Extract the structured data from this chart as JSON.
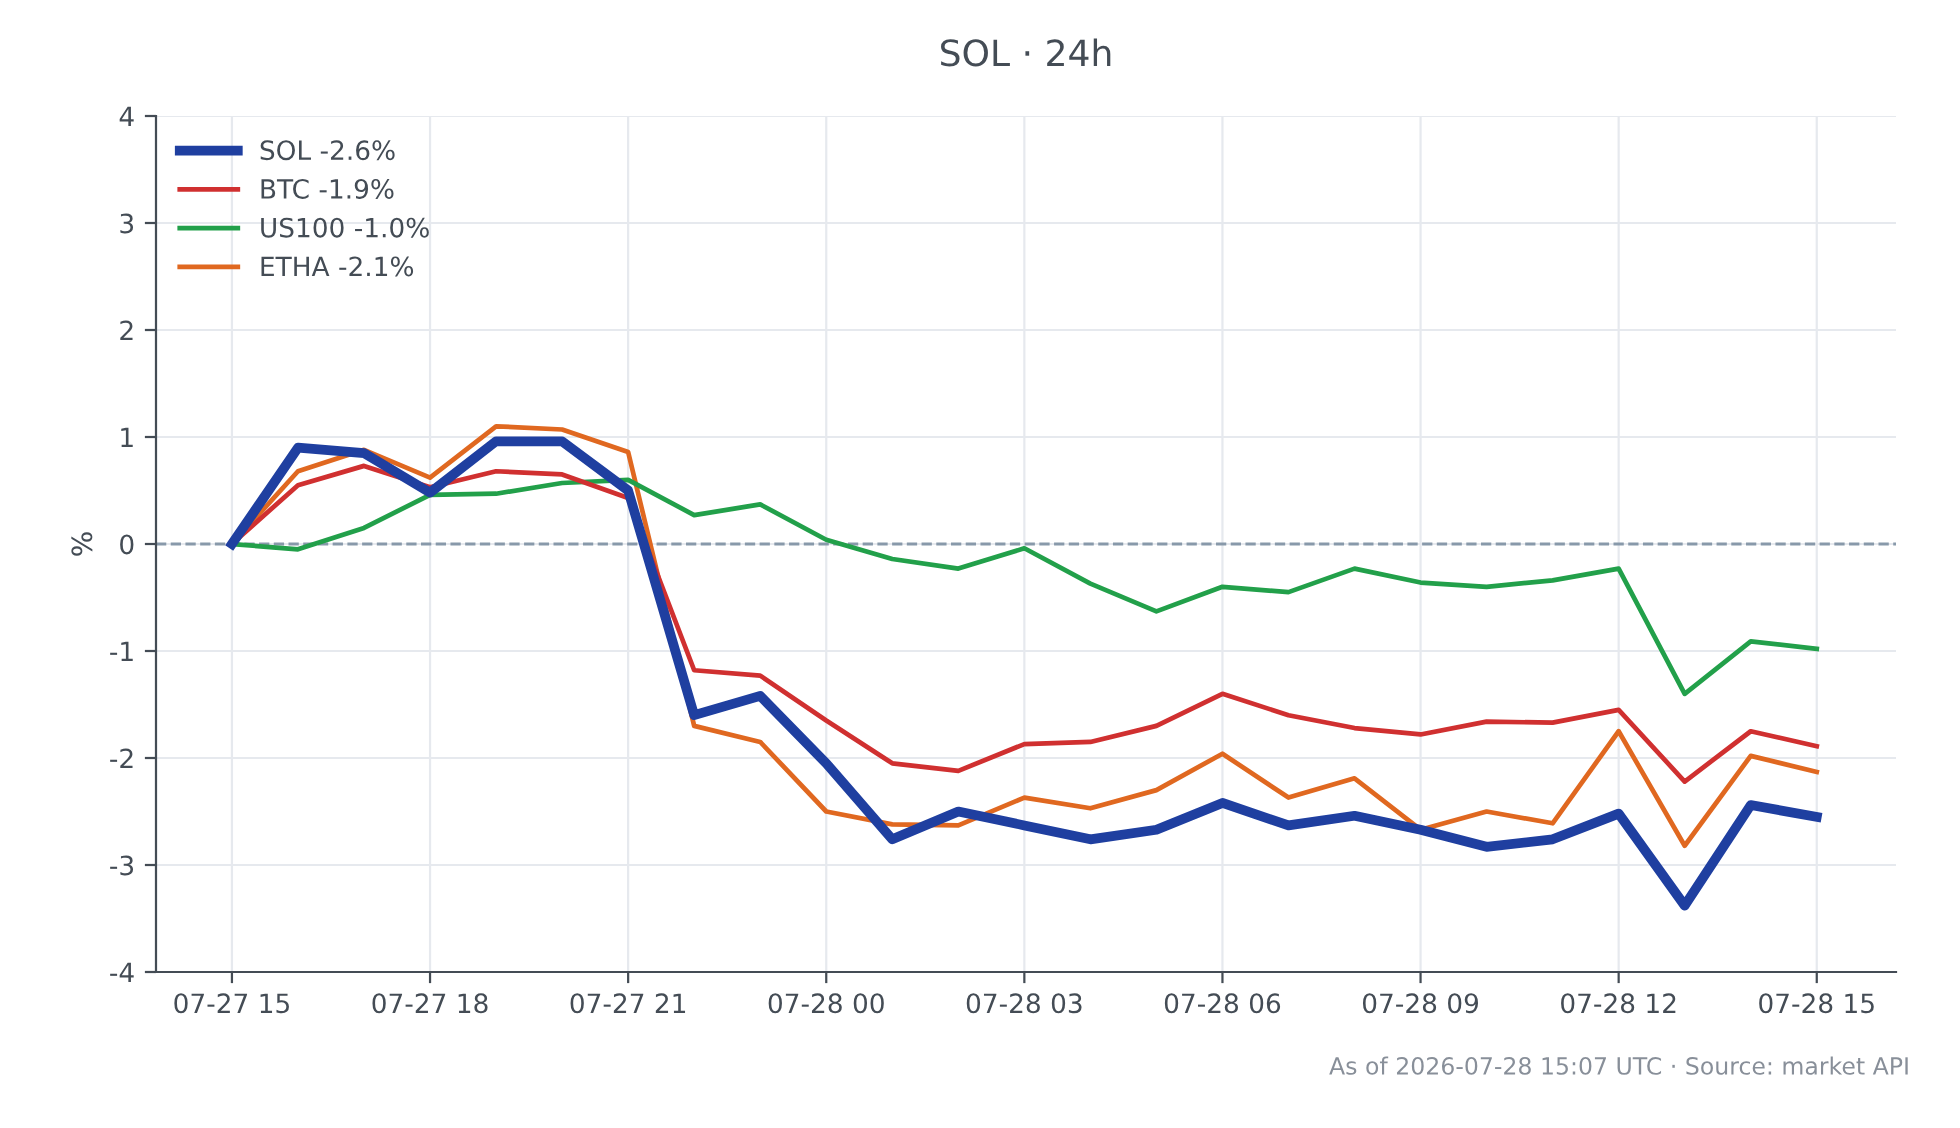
{
  "chart_data": {
    "type": "line",
    "title": "SOL · 24h",
    "ylabel": "%",
    "x": [
      "2026-07-27T15:00",
      "2026-07-27T16:00",
      "2026-07-27T17:00",
      "2026-07-27T18:00",
      "2026-07-27T19:00",
      "2026-07-27T20:00",
      "2026-07-27T21:00",
      "2026-07-27T22:00",
      "2026-07-27T23:00",
      "2026-07-28T00:00",
      "2026-07-28T01:00",
      "2026-07-28T02:00",
      "2026-07-28T03:00",
      "2026-07-28T04:00",
      "2026-07-28T05:00",
      "2026-07-28T06:00",
      "2026-07-28T07:00",
      "2026-07-28T08:00",
      "2026-07-28T09:00",
      "2026-07-28T10:00",
      "2026-07-28T11:00",
      "2026-07-28T12:00",
      "2026-07-28T13:00",
      "2026-07-28T14:00",
      "2026-07-28T15:00"
    ],
    "series": [
      {
        "name": "SOL -2.6%",
        "color": "#1f3fa0",
        "values": [
          0,
          0.9,
          0.85,
          0.48,
          0.96,
          0.96,
          0.5,
          -1.6,
          -1.42,
          -2.05,
          -2.76,
          -2.5,
          -2.63,
          -2.76,
          -2.67,
          -2.42,
          -2.63,
          -2.54,
          -2.67,
          -2.83,
          -2.76,
          -2.52,
          -3.38,
          -2.44,
          -2.55
        ]
      },
      {
        "name": "BTC -1.9%",
        "color": "#d03030",
        "values": [
          0,
          0.55,
          0.73,
          0.53,
          0.68,
          0.65,
          0.43,
          -1.18,
          -1.23,
          -1.65,
          -2.05,
          -2.12,
          -1.87,
          -1.85,
          -1.7,
          -1.4,
          -1.6,
          -1.72,
          -1.78,
          -1.66,
          -1.67,
          -1.55,
          -2.22,
          -1.75,
          -1.89
        ]
      },
      {
        "name": "US100 -1.0%",
        "color": "#22a04a",
        "values": [
          0,
          -0.05,
          0.15,
          0.46,
          0.47,
          0.57,
          0.6,
          0.27,
          0.37,
          0.04,
          -0.14,
          -0.23,
          -0.04,
          -0.37,
          -0.63,
          -0.4,
          -0.45,
          -0.23,
          -0.36,
          -0.4,
          -0.34,
          -0.23,
          -1.4,
          -0.91,
          -0.98
        ]
      },
      {
        "name": "ETHA -2.1%",
        "color": "#e06820",
        "values": [
          0,
          0.68,
          0.88,
          0.62,
          1.1,
          1.07,
          0.86,
          -1.7,
          -1.85,
          -2.5,
          -2.62,
          -2.63,
          -2.37,
          -2.47,
          -2.3,
          -1.96,
          -2.37,
          -2.19,
          -2.67,
          -2.5,
          -2.61,
          -1.75,
          -2.82,
          -1.98,
          -2.13
        ]
      }
    ],
    "xlim": [
      "2026-07-27T13:51",
      "2026-07-28T16:12"
    ],
    "xticks": [
      {
        "value": "2026-07-27T15:00",
        "label": "07-27 15"
      },
      {
        "value": "2026-07-27T18:00",
        "label": "07-27 18"
      },
      {
        "value": "2026-07-27T21:00",
        "label": "07-27 21"
      },
      {
        "value": "2026-07-28T00:00",
        "label": "07-28 00"
      },
      {
        "value": "2026-07-28T03:00",
        "label": "07-28 03"
      },
      {
        "value": "2026-07-28T06:00",
        "label": "07-28 06"
      },
      {
        "value": "2026-07-28T09:00",
        "label": "07-28 09"
      },
      {
        "value": "2026-07-28T12:00",
        "label": "07-28 12"
      },
      {
        "value": "2026-07-28T15:00",
        "label": "07-28 15"
      }
    ],
    "ylim": [
      -4,
      4
    ],
    "yticks": [
      -4,
      -3,
      -2,
      -1,
      0,
      1,
      2,
      3,
      4
    ],
    "ref_lines": [
      {
        "axis": "y",
        "value": 0,
        "color": "#8899aa",
        "line_style": "dashed"
      }
    ],
    "grid": true,
    "legend": "top left",
    "line_style": "solid",
    "marker": "none",
    "annotations": [
      "As of 2026-07-28 15:07 UTC · Source: market API"
    ]
  }
}
